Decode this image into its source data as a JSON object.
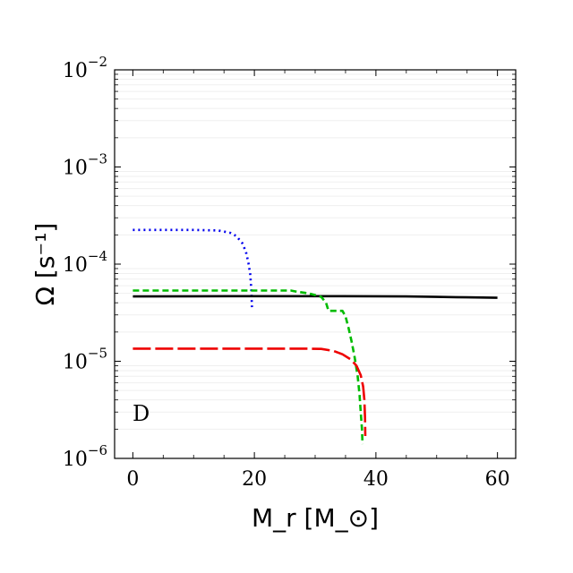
{
  "chart_data": {
    "type": "line",
    "xlabel": "M_r [M_⊙]",
    "ylabel": "Ω [s⁻¹]",
    "panel_label": "D",
    "xlim": [
      -3,
      63
    ],
    "ylim": [
      1e-06,
      0.01
    ],
    "yscale": "log",
    "grid": false,
    "x_ticks": [
      {
        "value": 0,
        "label": "0"
      },
      {
        "value": 20,
        "label": "20"
      },
      {
        "value": 40,
        "label": "40"
      },
      {
        "value": 60,
        "label": "60"
      }
    ],
    "y_ticks": [
      {
        "value": 1e-06,
        "base": "10",
        "exp": "−6"
      },
      {
        "value": 1e-05,
        "base": "10",
        "exp": "−5"
      },
      {
        "value": 0.0001,
        "base": "10",
        "exp": "−4"
      },
      {
        "value": 0.001,
        "base": "10",
        "exp": "−3"
      },
      {
        "value": 0.01,
        "base": "10",
        "exp": "−2"
      }
    ],
    "series": [
      {
        "color": "#0000ee",
        "style": "dotted",
        "x": [
          0,
          5,
          10,
          14,
          16,
          17,
          18,
          18.6,
          19.0,
          19.3,
          19.5,
          19.6
        ],
        "y": [
          0.000225,
          0.000225,
          0.000225,
          0.000222,
          0.00021,
          0.000195,
          0.000165,
          0.000135,
          0.000105,
          8e-05,
          5.5e-05,
          3.6e-05
        ]
      },
      {
        "color": "#000000",
        "style": "solid",
        "x": [
          0,
          10,
          20,
          30,
          40,
          45,
          50,
          55,
          60
        ],
        "y": [
          4.65e-05,
          4.67e-05,
          4.68e-05,
          4.68e-05,
          4.67e-05,
          4.65e-05,
          4.6e-05,
          4.55e-05,
          4.5e-05
        ]
      },
      {
        "color": "#00bb00",
        "style": "dashed",
        "x": [
          0,
          10,
          20,
          26,
          27,
          29,
          31,
          31.8,
          32.2,
          34.5,
          35,
          35.5,
          36,
          36.5,
          37,
          37.3,
          37.5,
          37.7,
          37.8
        ],
        "y": [
          5.35e-05,
          5.35e-05,
          5.35e-05,
          5.35e-05,
          5.2e-05,
          5e-05,
          4.6e-05,
          4e-05,
          3.3e-05,
          3.3e-05,
          2.9e-05,
          2.2e-05,
          1.6e-05,
          1.1e-05,
          7e-06,
          4.5e-06,
          3e-06,
          2e-06,
          1.4e-06
        ]
      },
      {
        "color": "#ee0000",
        "style": "longdash",
        "x": [
          0,
          10,
          20,
          28,
          31,
          33,
          34.5,
          35.8,
          36.8,
          37.5,
          37.9,
          38.1,
          38.2,
          38.25
        ],
        "y": [
          1.35e-05,
          1.35e-05,
          1.35e-05,
          1.35e-05,
          1.34e-05,
          1.28e-05,
          1.18e-05,
          1.05e-05,
          9e-06,
          7.2e-06,
          5.5e-06,
          4e-06,
          2.6e-06,
          1.7e-06
        ]
      }
    ]
  }
}
